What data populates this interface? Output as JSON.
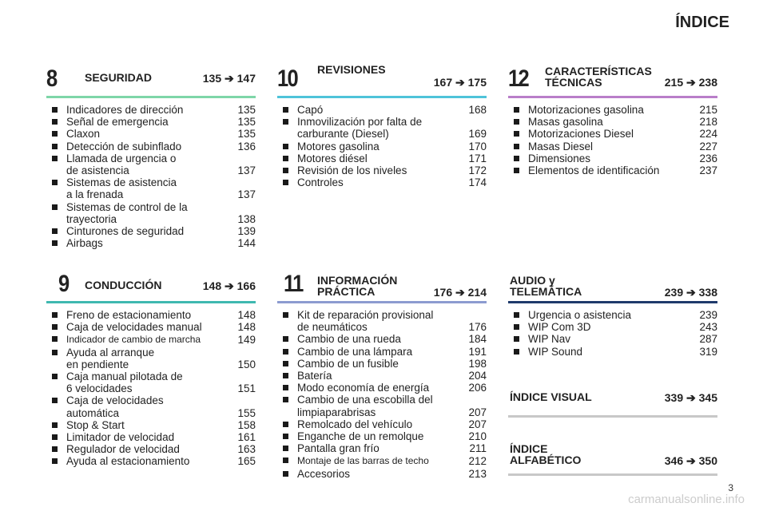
{
  "page_title": "ÍNDICE",
  "colors": {
    "seguridad": "#7ed6a8",
    "revisiones": "#4fc3d9",
    "caracteristicas": "#b97ec9",
    "conduccion": "#3fb8b0",
    "informacion": "#8c9bd0",
    "audio": "#1f3a6b",
    "gray": "#c8c8c8"
  },
  "sections": {
    "seguridad": {
      "number": "8",
      "title": "SEGURIDAD",
      "range": "135 ➔ 147",
      "items": [
        {
          "label": "Indicadores de dirección",
          "page": "135"
        },
        {
          "label": "Señal de emergencia",
          "page": "135"
        },
        {
          "label": "Claxon",
          "page": "135"
        },
        {
          "label": "Detección de subinflado",
          "page": "136"
        },
        {
          "label": "Llamada de urgencia o\nde asistencia",
          "page": "137"
        },
        {
          "label": "Sistemas de asistencia\na la frenada",
          "page": "137"
        },
        {
          "label": "Sistemas de control de la\ntrayectoria",
          "page": "138"
        },
        {
          "label": "Cinturones de seguridad",
          "page": "139"
        },
        {
          "label": "Airbags",
          "page": "144"
        }
      ]
    },
    "revisiones": {
      "number": "10",
      "title": "REVISIONES",
      "range": "167 ➔ 175",
      "items": [
        {
          "label": "Capó",
          "page": "168"
        },
        {
          "label": "Inmovilización por falta de\ncarburante (Diesel)",
          "page": "169"
        },
        {
          "label": "Motores gasolina",
          "page": "170"
        },
        {
          "label": "Motores diésel",
          "page": "171"
        },
        {
          "label": "Revisión de los niveles",
          "page": "172"
        },
        {
          "label": "Controles",
          "page": "174"
        }
      ]
    },
    "caracteristicas": {
      "number": "12",
      "title": "CARACTERÍSTICAS\nTÉCNICAS",
      "range": "215 ➔ 238",
      "items": [
        {
          "label": "Motorizaciones gasolina",
          "page": "215"
        },
        {
          "label": "Masas gasolina",
          "page": "218"
        },
        {
          "label": "Motorizaciones Diesel",
          "page": "224"
        },
        {
          "label": "Masas Diesel",
          "page": "227"
        },
        {
          "label": "Dimensiones",
          "page": "236"
        },
        {
          "label": "Elementos de identificación",
          "page": "237"
        }
      ]
    },
    "conduccion": {
      "number": "9",
      "title": "CONDUCCIÓN",
      "range": "148 ➔ 166",
      "items": [
        {
          "label": "Freno de estacionamiento",
          "page": "148"
        },
        {
          "label": "Caja de velocidades manual",
          "page": "148"
        },
        {
          "label": "Indicador de cambio de marcha",
          "page": "149"
        },
        {
          "label": "Ayuda al arranque\nen pendiente",
          "page": "150"
        },
        {
          "label": "Caja manual pilotada de\n6 velocidades",
          "page": "151"
        },
        {
          "label": "Caja de velocidades\nautomática",
          "page": "155"
        },
        {
          "label": "Stop & Start",
          "page": "158"
        },
        {
          "label": "Limitador de velocidad",
          "page": "161"
        },
        {
          "label": "Regulador de velocidad",
          "page": "163"
        },
        {
          "label": "Ayuda al estacionamiento",
          "page": "165"
        }
      ]
    },
    "informacion": {
      "number": "11",
      "title": "INFORMACIÓN\nPRÁCTICA",
      "range": "176 ➔ 214",
      "items": [
        {
          "label": "Kit de reparación provisional\nde neumáticos",
          "page": "176"
        },
        {
          "label": "Cambio de una rueda",
          "page": "184"
        },
        {
          "label": "Cambio de una lámpara",
          "page": "191"
        },
        {
          "label": "Cambio de un fusible",
          "page": "198"
        },
        {
          "label": "Batería",
          "page": "204"
        },
        {
          "label": "Modo economía de energía",
          "page": "206"
        },
        {
          "label": "Cambio de una escobilla del\nlimpiaparabrisas",
          "page": "207"
        },
        {
          "label": "Remolcado del vehículo",
          "page": "207"
        },
        {
          "label": "Enganche de un remolque",
          "page": "210"
        },
        {
          "label": "Pantalla gran frío",
          "page": "211"
        },
        {
          "label": "Montaje de las barras de techo",
          "page": "212"
        },
        {
          "label": "Accesorios",
          "page": "213"
        }
      ]
    },
    "audio": {
      "title": "AUDIO y\nTELEMÁTICA",
      "range": "239 ➔ 338",
      "items": [
        {
          "label": "Urgencia o asistencia",
          "page": "239"
        },
        {
          "label": "WIP Com 3D",
          "page": "243"
        },
        {
          "label": "WIP Nav",
          "page": "287"
        },
        {
          "label": "WIP Sound",
          "page": "319"
        }
      ]
    },
    "visual": {
      "title": "ÍNDICE VISUAL",
      "range": "339 ➔ 345"
    },
    "alfabetico": {
      "title": "ÍNDICE\nALFABÉTICO",
      "range": "346 ➔ 350"
    }
  },
  "page_number": "3",
  "watermark": "carmanualsonline.info"
}
